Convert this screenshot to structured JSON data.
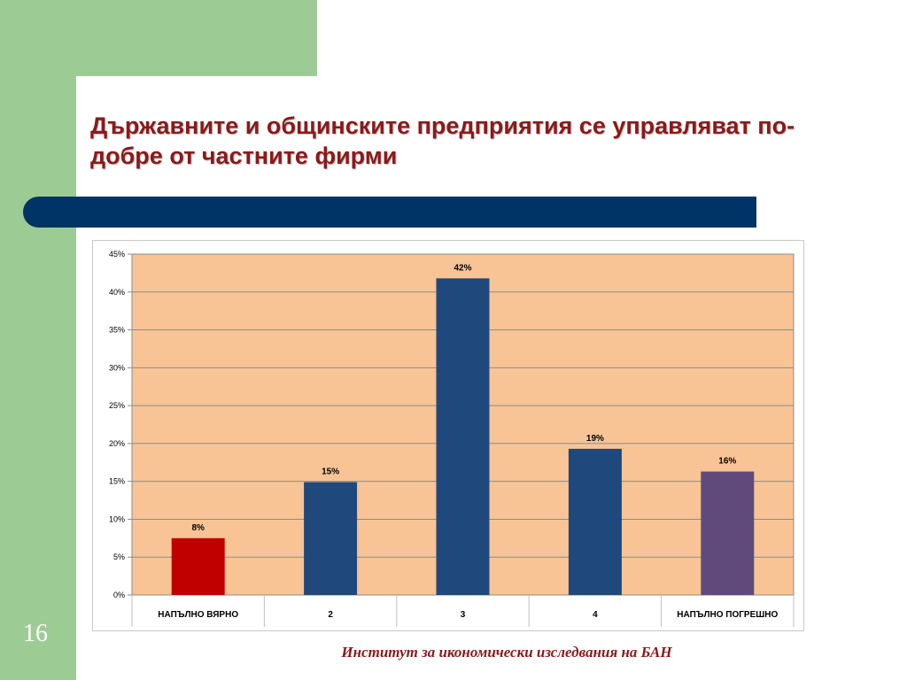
{
  "slide": {
    "title": "Държавните и общинските предприятия се управляват по-добре от частните фирми",
    "number": "16",
    "footer": "Институт за икономически изследвания на БАН"
  },
  "colors": {
    "plot_bg": "#f8c495",
    "bar_red": "#c00000",
    "bar_blue": "#1f497d",
    "bar_purple": "#604a7b",
    "green": "#9ccc94",
    "band": "#003366"
  },
  "chart_data": {
    "type": "bar",
    "categories": [
      "НАПЪЛНО ВЯРНО",
      "2",
      "3",
      "4",
      "НАПЪЛНО ПОГРЕШНО"
    ],
    "values": [
      7.5,
      14.9,
      41.8,
      19.3,
      16.3
    ],
    "data_labels": [
      "8%",
      "15%",
      "42%",
      "19%",
      "16%"
    ],
    "bar_colors": [
      "#c00000",
      "#1f497d",
      "#1f497d",
      "#1f497d",
      "#604a7b"
    ],
    "ylim": [
      0,
      45
    ],
    "y_ticks": [
      0,
      5,
      10,
      15,
      20,
      25,
      30,
      35,
      40,
      45
    ],
    "y_tick_labels": [
      "0%",
      "5%",
      "10%",
      "15%",
      "20%",
      "25%",
      "30%",
      "35%",
      "40%",
      "45%"
    ],
    "grid": true,
    "legend": "none"
  }
}
